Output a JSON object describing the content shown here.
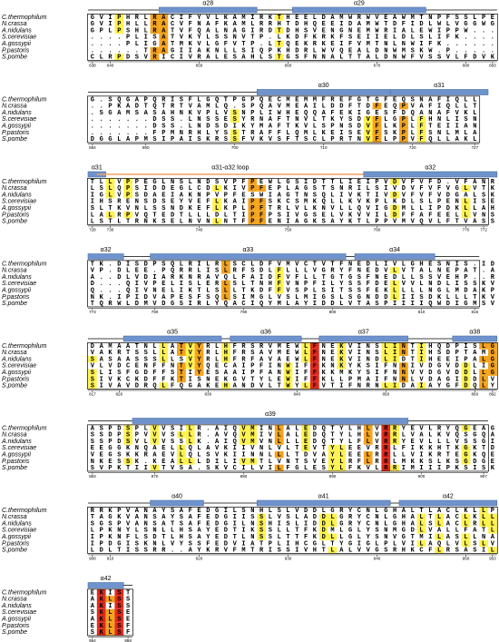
{
  "species": [
    "C.thermophilum",
    "N.crassa",
    "A.nidulans",
    "S.cerevisiae",
    "A.gossypii",
    "P.pastoris",
    "S.pombe"
  ],
  "colors": {
    "full": "#e2291b",
    "high": "#f4a31c",
    "mid": "#fff24f"
  },
  "blocks": [
    {
      "helices": [
        "α28",
        "α29"
      ],
      "rows": [
        "GVIPHRLRACIFYVLKAMIRKTHEELDAMWRWVEAWMTNPFSSLPE",
        "GVIPHLLRACVFNAFKAMLRRHTDHQEEIDAMWTDFIDLWLVGGWG",
        "GPLPSHLRATVFQALNAGIRDTDHSVENGNEMWRIALEWIPPW...",
        "....PLISATVKYLSSNVTP.LKDFKRKFSEIIELDLSLIFK....",
        "....PLIGATMKVLGFVTP.LTQEKRKEIFVMTNLNWIFK......",
        "......TRAGIIAKNLLSIQPKHDRLWVQEALDNWMSKW.P.....",
        "CLRPDSVRICIVRALESAHLSTGSFNNALTTALDNWFVSSVLFDVK"
      ],
      "numbers": [
        638,
        640,
        650,
        660,
        670,
        680,
        683
      ]
    },
    {
      "helices": [
        "α30",
        "α31"
      ],
      "rows": [
        "G.SQGAPQRISFLGQTPGPQECMEMMFREFGTGFEQSNAFIQLL",
        "..PKADTQTRTVAMLQ.SPQAVMEAILDDFTDFEQPVAFIQLLT",
        ".SGAMSASAHNKVPLVSNPLIWHEQQAFEKIGESFDQANAFVKL",
        ".......DSS.LNSSESYRNAFTNVLTKYSDVFLGPLFHNLISN",
        ".......DSS.LNDSDIKYMAFTKVLSPNSDVFLKPLFTEIIAN",
        ".......FPMNRHLYSSTRAFFLQMLKEISEVFSKPLFSNLMLA",
        "DGGLAPMSIPAISKRSSFVKVSFTSCLPRTNVFLPPVFQLLAKL"
      ],
      "numbers": [
        684,
        690,
        700,
        710,
        720,
        727
      ]
    },
    {
      "helices": [
        "α31",
        "α31-α32 loop",
        "α32"
      ],
      "rows": [
        "TLLVPPEGLNSLNDSVPFPEWLGSIDTTLIEIPVDVFVFD.VFANR",
        "LSLQPSIDDEGLCDLKIVPFEPLAGSTSNRILSIVDVFVFVGLVTK",
        "IGLVPSDAEIAKNPVPFESWIAGTNSQLIVKTIVDVFVFVDGALSK",
        "IHSRENSDSEYVEFLKAIPFSKCSMKQLLKVKPLKDLSLPENLISE",
        "SLTKVNLSSNDKEFLKPLPFTRLVLKNVLLQVIGDMLLIPDKLLAH",
        "LALRPVQTEDTLLLDLTIPFPSIVGSELVKVVILDFFAFEELLVNS",
        "LSTLTRNKSELNVNLNTFPFENIAGKSAYKTLPPVMVQVLFTVASS"
      ],
      "numbers": [
        728,
        730,
        740,
        750,
        760,
        770,
        772
      ]
    },
    {
      "helices": [
        "α32",
        "α33",
        "α34"
      ],
      "rows": [
        "TK.DISDPSQLRILRLSCLDFVMVCTVTFNEDLIVLGHESNIS.IDA",
        "VP.DLEE.PQRRLISLRFSDLFLLLVGRYFNEDVLVTALNEPAT.AE",
        "A..DLVDIARKNRAVQLFAIDFVFLLTGTGSFNEDLLSSVEHP..RY",
        "D...QIVPELISLERLSLTNHFVNPFILYSSFDELVVLNDLISSKV.",
        "Q...QIVNELIKTLSLLTKDFFVSPLSITSSFEKLLLLNGLMDAKP.",
        "NK.IPIDVAPESFSQLSIMGLVSLMIGSLSGNDDLIISDKLLLTKV.",
        "TQRWLDMVDGSIRLYQACIQYMLAYIDDLVTASPIIIIQWDIGMSVK"
      ],
      "numbers": [
        773,
        780,
        790,
        800,
        810,
        816
      ]
    },
    {
      "helices": [
        "α35",
        "α36",
        "α37",
        "α38"
      ],
      "rows": [
        "DAMAATNLLATVYRLHFRSRVMEWLFNEKVINSLINTIHQDPISLGS",
        "VAKRTSSLLATVYRLHFRSAVMEWLFNEKVINSLINTIHSDPTAMGS",
        "SASAASSSLLSVYRLHFRFAVAEWLFNEKVINDLIDTIHEEIPALGS",
        "VLVDCENFFNTVYQECAIPFINWIFFKNKYKSIFNNIVDGVDDLIGS",
        "SLISFGDFFSTIYESAAIPFANWIFFKKMKYSIFNNVVDGVDDLLGS",
        "SIVKCKDFFKTISNEKGVTYLEWIFFKLLPMAIFNNLVDAGIDDLVS",
        "SIVAVDRQLFQGAKEHANDVLTWYLFVTIFNRNLIDAIAYGFDQLYS"
      ],
      "numbers": [
        817,
        820,
        830,
        840,
        850,
        860,
        862
      ]
    },
    {
      "helices": [
        "α39"
      ],
      "rows": [
        "ASPDSPLVVSILR.AIQVMINLALEDQTYLHLVRRYEVLRYQGEAGV",
        "SSDPSPVVVSLLR.AVQVMIVLALEDQTYLHLVRRLVALKVQSGQAN",
        "SSPDSVLVVSSLK.AIQVMVNLLLEDQTYLFLVRRYEVLLLVSSGIQ",
        "EEGGKNQAELLQLAVKIIVNLVLTEVTYLEEVRRLFIKKHTKGKTDY",
        "VEGSKKRAEVLQLSVKIINNLLLTDVAYLEELRRLLVIKRTEGKQEQ",
        "NKESSK.KEALLLDILIVMTLVNTSVEYLRFLRRLMKKSLKSGDGEQ",
        "SVPKTIIVTVSA.SKVCILVILFGLESYLFKVLRRIMIIIPKSISKY"
      ],
      "numbers": [
        863,
        870,
        880,
        890,
        900,
        907
      ]
    },
    {
      "helices": [
        "α40",
        "α41",
        "α42"
      ],
      "rows": [
        "RRKPVANAYSAFEDGILSNHLSLVDDLGRYCNLGHALTLACLKLLP",
        "TAGKVANSAYSAFEDGIISSLVSLADDLGRYCNLGHALTLACLKLL",
        "SGSPVANSATSAFEDGILNSHISLIDDLGRYCNLGHALSLACLRLL",
        "LPKNYLSNLLHSAYEDTIKSSLLTFKDMLGLYSNMGDLVALLFATL",
        "IPKNFLSDTLHSAYEDTLNSSLTTFKDLLGLYSNVGTMILASLLNA",
        "IPDGISKNLVYSSFEDVIATPLIHCGLTYGIGLPLVILAQLVLSLV",
        "LDLTISSRR..AYKRVFMTRISSIVHTLALVVGSRHKCFLRSASIL"
      ],
      "numbers": [
        908,
        910,
        920,
        930,
        940,
        950,
        953
      ]
    },
    {
      "helices": [
        "α42"
      ],
      "rows": [
        "EKIST",
        "AKLSS",
        "AKISS",
        "SKLSE",
        "AKLSE",
        "EKLSF",
        "SKLSF"
      ],
      "numbers": [
        954,
        958
      ]
    }
  ]
}
